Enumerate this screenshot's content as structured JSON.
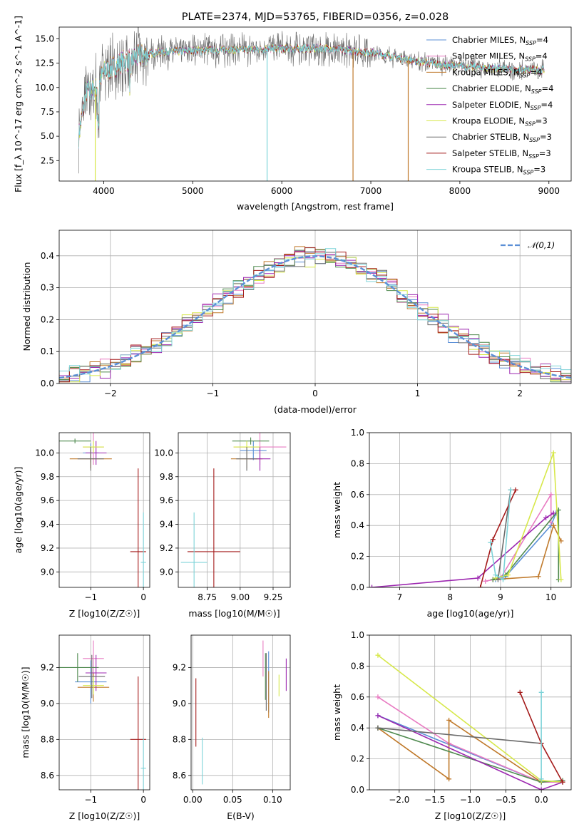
{
  "colors": {
    "chabrier_miles": "#5b8fd6",
    "salpeter_miles": "#e87bc2",
    "kroupa_miles": "#c07a2c",
    "chabrier_elodie": "#4f8a4f",
    "salpeter_elodie": "#9c27b0",
    "kroupa_elodie": "#d7e84a",
    "chabrier_stelib": "#6b6b6b",
    "salpeter_stelib": "#a51c1c",
    "kroupa_stelib": "#7dd3d8",
    "normal": "#5b8fd6",
    "grid": "#b0b0b0"
  },
  "chart_data": [
    {
      "id": "spectrum",
      "type": "line",
      "title": "PLATE=2374, MJD=53765, FIBERID=0356, z=0.028",
      "xlabel": "wavelength [Angstrom, rest frame]",
      "ylabel": "Flux [f_λ 10^-17 erg cm^-2 s^-1 A^-1]",
      "xlim": [
        3500,
        9250
      ],
      "ylim": [
        0.4,
        16.2
      ],
      "xticks": [
        "4000",
        "5000",
        "6000",
        "7000",
        "8000",
        "9000"
      ],
      "yticks": [
        "2.5",
        "5.0",
        "7.5",
        "10.0",
        "12.5",
        "15.0"
      ],
      "legend": "top-right",
      "series": [
        {
          "name": "Chabrier MILES, N_SSP=4",
          "color": "#5b8fd6"
        },
        {
          "name": "Salpeter MILES, N_SSP=4",
          "color": "#e87bc2"
        },
        {
          "name": "Kroupa MILES, N_SSP=4",
          "color": "#c07a2c"
        },
        {
          "name": "Chabrier ELODIE, N_SSP=4",
          "color": "#4f8a4f"
        },
        {
          "name": "Salpeter ELODIE, N_SSP=4",
          "color": "#9c27b0"
        },
        {
          "name": "Kroupa ELODIE, N_SSP=3",
          "color": "#d7e84a"
        },
        {
          "name": "Chabrier STELIB, N_SSP=3",
          "color": "#6b6b6b"
        },
        {
          "name": "Salpeter STELIB, N_SSP=3",
          "color": "#a51c1c"
        },
        {
          "name": "Kroupa STELIB, N_SSP=3",
          "color": "#7dd3d8"
        }
      ],
      "approx_continuum": [
        [
          3720,
          5.0
        ],
        [
          3800,
          9.5
        ],
        [
          3900,
          9.8
        ],
        [
          4000,
          11.5
        ],
        [
          4200,
          12.6
        ],
        [
          4400,
          13.2
        ],
        [
          4600,
          13.6
        ],
        [
          5000,
          13.8
        ],
        [
          5500,
          13.9
        ],
        [
          6000,
          14.0
        ],
        [
          6500,
          14.0
        ],
        [
          7000,
          13.6
        ],
        [
          7400,
          12.9
        ],
        [
          7800,
          12.3
        ],
        [
          8200,
          12.1
        ],
        [
          8600,
          11.8
        ],
        [
          8950,
          11.8
        ]
      ],
      "drop_features": [
        [
          3905,
          0.4
        ],
        [
          5835,
          0.4
        ],
        [
          6800,
          0.4
        ],
        [
          7420,
          0.4
        ]
      ]
    },
    {
      "id": "residuals",
      "type": "step",
      "xlabel": "(data-model)/error",
      "ylabel": "Normed distribution",
      "xlim": [
        -2.5,
        2.5
      ],
      "ylim": [
        0.0,
        0.48
      ],
      "xticks": [
        "−2",
        "−1",
        "0",
        "1",
        "2"
      ],
      "yticks": [
        "0.0",
        "0.1",
        "0.2",
        "0.3",
        "0.4"
      ],
      "legend": "top-right",
      "normal_label": "𝒩(0,1)",
      "bin_width": 0.1
    },
    {
      "id": "age_vs_Z",
      "type": "errorbar",
      "xlabel": "Z [log10(Z/Z☉)]",
      "ylabel": "age [log10(age/yr)]",
      "xlim": [
        -1.6,
        0.12
      ],
      "ylim": [
        8.87,
        10.17
      ],
      "xticks": [
        "−1",
        "0"
      ],
      "yticks": [
        "9.0",
        "9.2",
        "9.4",
        "9.6",
        "9.8",
        "10.0"
      ],
      "points": [
        {
          "x": -1.0,
          "y": 10.0,
          "xerr": 0.15,
          "yerr": 0.08,
          "color": "#5b8fd6"
        },
        {
          "x": -0.95,
          "y": 10.05,
          "xerr": 0.2,
          "yerr": 0.15,
          "color": "#e87bc2"
        },
        {
          "x": -1.0,
          "y": 9.95,
          "xerr": 0.4,
          "yerr": 0.08,
          "color": "#c07a2c"
        },
        {
          "x": -1.3,
          "y": 10.1,
          "xerr": 0.3,
          "yerr": 0.02,
          "color": "#4f8a4f"
        },
        {
          "x": -0.9,
          "y": 10.0,
          "xerr": 0.2,
          "yerr": 0.1,
          "color": "#9c27b0"
        },
        {
          "x": -0.95,
          "y": 10.05,
          "xerr": 0.2,
          "yerr": 0.05,
          "color": "#d7e84a"
        },
        {
          "x": -1.0,
          "y": 9.95,
          "xerr": 0.25,
          "yerr": 0.1,
          "color": "#6b6b6b"
        },
        {
          "x": -0.1,
          "y": 9.17,
          "xerr": 0.15,
          "yerr": 0.7,
          "color": "#a51c1c"
        },
        {
          "x": 0.0,
          "y": 9.08,
          "xerr": 0.05,
          "yerr": 0.42,
          "color": "#7dd3d8"
        }
      ]
    },
    {
      "id": "age_vs_mass",
      "type": "errorbar",
      "xlabel": "mass [log10(M/M☉)]",
      "ylabel": "",
      "xlim": [
        8.53,
        9.38
      ],
      "ylim": [
        8.87,
        10.17
      ],
      "xticks": [
        "8.75",
        "9.00",
        "9.25"
      ],
      "yticks": [
        "9.0",
        "9.2",
        "9.4",
        "9.6",
        "9.8",
        "10.0"
      ],
      "points": [
        {
          "x": 9.1,
          "y": 10.02,
          "xerr": 0.1,
          "yerr": 0.08,
          "color": "#5b8fd6"
        },
        {
          "x": 9.15,
          "y": 10.05,
          "xerr": 0.2,
          "yerr": 0.15,
          "color": "#e87bc2"
        },
        {
          "x": 9.05,
          "y": 9.95,
          "xerr": 0.12,
          "yerr": 0.08,
          "color": "#c07a2c"
        },
        {
          "x": 9.08,
          "y": 10.1,
          "xerr": 0.14,
          "yerr": 0.03,
          "color": "#4f8a4f"
        },
        {
          "x": 9.15,
          "y": 9.95,
          "xerr": 0.08,
          "yerr": 0.1,
          "color": "#9c27b0"
        },
        {
          "x": 9.05,
          "y": 10.05,
          "xerr": 0.1,
          "yerr": 0.05,
          "color": "#d7e84a"
        },
        {
          "x": 9.05,
          "y": 9.95,
          "xerr": 0.08,
          "yerr": 0.1,
          "color": "#6b6b6b"
        },
        {
          "x": 8.8,
          "y": 9.17,
          "xerr": 0.2,
          "yerr": 0.7,
          "color": "#a51c1c"
        },
        {
          "x": 8.65,
          "y": 9.08,
          "xerr": 0.1,
          "yerr": 0.42,
          "color": "#7dd3d8"
        }
      ]
    },
    {
      "id": "weight_vs_age",
      "type": "line",
      "xlabel": "age [log10(age/yr)]",
      "ylabel": "mass weight",
      "xlim": [
        6.4,
        10.4
      ],
      "ylim": [
        0.0,
        1.0
      ],
      "xticks": [
        "7",
        "8",
        "9",
        "10"
      ],
      "yticks": [
        "0.0",
        "0.2",
        "0.4",
        "0.6",
        "0.8",
        "1.0"
      ],
      "series": [
        {
          "color": "#5b8fd6",
          "x": [
            8.9,
            9.1,
            10.0,
            10.1
          ],
          "y": [
            0.05,
            0.07,
            0.4,
            0.48
          ]
        },
        {
          "color": "#e87bc2",
          "x": [
            8.7,
            9.0,
            10.0,
            10.0
          ],
          "y": [
            0.04,
            0.06,
            0.6,
            0.42
          ]
        },
        {
          "color": "#c07a2c",
          "x": [
            8.85,
            9.75,
            10.05,
            10.2
          ],
          "y": [
            0.05,
            0.07,
            0.4,
            0.3
          ]
        },
        {
          "color": "#4f8a4f",
          "x": [
            8.85,
            9.1,
            10.15,
            10.15
          ],
          "y": [
            0.05,
            0.08,
            0.5,
            0.05
          ]
        },
        {
          "color": "#9c27b0",
          "x": [
            6.45,
            8.55,
            9.9,
            10.05
          ],
          "y": [
            0.0,
            0.06,
            0.45,
            0.48
          ]
        },
        {
          "color": "#d7e84a",
          "x": [
            8.9,
            9.15,
            10.05,
            10.2
          ],
          "y": [
            0.06,
            0.08,
            0.87,
            0.05
          ]
        },
        {
          "color": "#6b6b6b",
          "x": [
            8.95,
            9.2
          ],
          "y": [
            0.05,
            0.63
          ]
        },
        {
          "color": "#a51c1c",
          "x": [
            8.6,
            8.85,
            9.3
          ],
          "y": [
            0.0,
            0.31,
            0.63
          ]
        },
        {
          "color": "#7dd3d8",
          "x": [
            8.8,
            8.9,
            9.05,
            9.2
          ],
          "y": [
            0.29,
            0.08,
            0.05,
            0.63
          ]
        }
      ]
    },
    {
      "id": "mass_vs_Z",
      "type": "errorbar",
      "xlabel": "Z [log10(Z/Z☉)]",
      "ylabel": "mass [log10(M/M☉)]",
      "xlim": [
        -1.6,
        0.12
      ],
      "ylim": [
        8.52,
        9.38
      ],
      "xticks": [
        "−1",
        "0"
      ],
      "yticks": [
        "8.6",
        "8.8",
        "9.0",
        "9.2"
      ],
      "points": [
        {
          "x": -1.0,
          "y": 9.12,
          "xerr": 0.3,
          "yerr": 0.12,
          "color": "#5b8fd6"
        },
        {
          "x": -0.95,
          "y": 9.25,
          "xerr": 0.2,
          "yerr": 0.1,
          "color": "#e87bc2"
        },
        {
          "x": -0.95,
          "y": 9.09,
          "xerr": 0.3,
          "yerr": 0.08,
          "color": "#c07a2c"
        },
        {
          "x": -1.25,
          "y": 9.2,
          "xerr": 0.4,
          "yerr": 0.08,
          "color": "#4f8a4f"
        },
        {
          "x": -0.9,
          "y": 9.17,
          "xerr": 0.2,
          "yerr": 0.1,
          "color": "#9c27b0"
        },
        {
          "x": -0.95,
          "y": 9.1,
          "xerr": 0.2,
          "yerr": 0.05,
          "color": "#d7e84a"
        },
        {
          "x": -0.98,
          "y": 9.15,
          "xerr": 0.25,
          "yerr": 0.12,
          "color": "#6b6b6b"
        },
        {
          "x": -0.1,
          "y": 8.8,
          "xerr": 0.15,
          "yerr": 0.35,
          "color": "#a51c1c"
        },
        {
          "x": 0.0,
          "y": 8.64,
          "xerr": 0.05,
          "yerr": 0.17,
          "color": "#7dd3d8"
        }
      ]
    },
    {
      "id": "mass_vs_ebv",
      "type": "errorbar",
      "xlabel": "E(B-V)",
      "ylabel": "",
      "xlim": [
        -0.002,
        0.122
      ],
      "ylim": [
        8.52,
        9.38
      ],
      "xticks": [
        "0.00",
        "0.05",
        "0.10"
      ],
      "yticks": [
        "8.6",
        "8.8",
        "9.0",
        "9.2"
      ],
      "points": [
        {
          "x": 0.095,
          "y": 9.12,
          "yerr": 0.17,
          "color": "#5b8fd6"
        },
        {
          "x": 0.088,
          "y": 9.25,
          "yerr": 0.1,
          "color": "#e87bc2"
        },
        {
          "x": 0.095,
          "y": 9.05,
          "yerr": 0.13,
          "color": "#c07a2c"
        },
        {
          "x": 0.091,
          "y": 9.15,
          "yerr": 0.13,
          "color": "#4f8a4f"
        },
        {
          "x": 0.117,
          "y": 9.16,
          "yerr": 0.09,
          "color": "#9c27b0"
        },
        {
          "x": 0.108,
          "y": 9.1,
          "yerr": 0.06,
          "color": "#d7e84a"
        },
        {
          "x": 0.092,
          "y": 9.12,
          "yerr": 0.16,
          "color": "#6b6b6b"
        },
        {
          "x": 0.004,
          "y": 8.95,
          "yerr": 0.19,
          "color": "#a51c1c"
        },
        {
          "x": 0.012,
          "y": 8.68,
          "yerr": 0.13,
          "color": "#7dd3d8"
        }
      ]
    },
    {
      "id": "weight_vs_Z",
      "type": "line",
      "xlabel": "Z [log10(Z/Z☉)]",
      "ylabel": "mass weight",
      "xlim": [
        -2.42,
        0.42
      ],
      "ylim": [
        0.0,
        1.0
      ],
      "xticks": [
        "−2.0",
        "−1.5",
        "−1.0",
        "−0.5",
        "0.0"
      ],
      "yticks": [
        "0.0",
        "0.2",
        "0.4",
        "0.6",
        "0.8",
        "1.0"
      ],
      "series": [
        {
          "color": "#5b8fd6",
          "x": [
            -2.3,
            0.0,
            0.3
          ],
          "y": [
            0.48,
            0.05,
            0.05
          ]
        },
        {
          "color": "#e87bc2",
          "x": [
            -2.3,
            -1.3,
            0.0,
            0.3
          ],
          "y": [
            0.6,
            0.3,
            0.05,
            0.05
          ]
        },
        {
          "color": "#c07a2c",
          "x": [
            -2.3,
            -1.3,
            -1.3,
            0.0
          ],
          "y": [
            0.4,
            0.07,
            0.45,
            0.05
          ]
        },
        {
          "color": "#4f8a4f",
          "x": [
            -2.3,
            0.0,
            0.3
          ],
          "y": [
            0.4,
            0.05,
            0.06
          ]
        },
        {
          "color": "#9c27b0",
          "x": [
            -2.3,
            0.0,
            0.3
          ],
          "y": [
            0.48,
            0.0,
            0.05
          ]
        },
        {
          "color": "#d7e84a",
          "x": [
            -2.3,
            0.0,
            0.3
          ],
          "y": [
            0.87,
            0.06,
            0.05
          ]
        },
        {
          "color": "#6b6b6b",
          "x": [
            -2.3,
            0.0
          ],
          "y": [
            0.4,
            0.3
          ]
        },
        {
          "color": "#a51c1c",
          "x": [
            -0.3,
            0.0,
            0.3
          ],
          "y": [
            0.63,
            0.3,
            0.05
          ]
        },
        {
          "color": "#7dd3d8",
          "x": [
            0.0,
            0.0
          ],
          "y": [
            0.63,
            0.07
          ]
        }
      ]
    }
  ]
}
